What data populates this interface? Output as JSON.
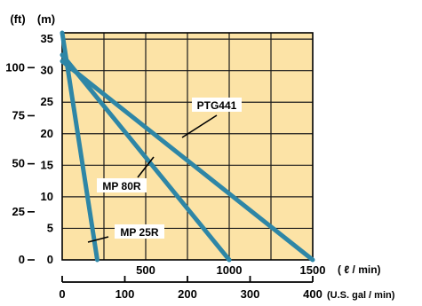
{
  "chart_data": {
    "type": "line",
    "colors": {
      "plot_background": "#FCE3A6",
      "grid": "#1a1a1a",
      "series": "#2E86A6"
    },
    "x_axis_primary": {
      "label": "( ℓ / min)",
      "range": [
        0,
        1500
      ],
      "ticks": [
        {
          "value": 0,
          "label": "0"
        },
        {
          "value": 500,
          "label": "500"
        },
        {
          "value": 1000,
          "label": "1000"
        },
        {
          "value": 1500,
          "label": "1500"
        }
      ],
      "minor_ticks": [
        250,
        750,
        1250
      ]
    },
    "x_axis_secondary": {
      "label": "(U.S. gal / min)",
      "range": [
        0,
        400
      ],
      "ticks": [
        {
          "value": 0,
          "label": "0"
        },
        {
          "value": 100,
          "label": "100"
        },
        {
          "value": 200,
          "label": "200"
        },
        {
          "value": 300,
          "label": "300"
        },
        {
          "value": 400,
          "label": "400"
        }
      ]
    },
    "y_axis_primary": {
      "label": "(m)",
      "range": [
        0,
        36
      ],
      "ticks": [
        {
          "value": 0,
          "label": "0"
        },
        {
          "value": 5,
          "label": "5"
        },
        {
          "value": 10,
          "label": "10"
        },
        {
          "value": 15,
          "label": "15"
        },
        {
          "value": 20,
          "label": "20"
        },
        {
          "value": 25,
          "label": "25"
        },
        {
          "value": 30,
          "label": "30"
        },
        {
          "value": 35,
          "label": "35"
        }
      ]
    },
    "y_axis_secondary": {
      "label": "(ft)",
      "ticks": [
        {
          "value": 0,
          "label": "0"
        },
        {
          "value": 25,
          "label": "25"
        },
        {
          "value": 50,
          "label": "50"
        },
        {
          "value": 75,
          "label": "75"
        },
        {
          "value": 100,
          "label": "100"
        }
      ]
    },
    "series": [
      {
        "name": "PTG441",
        "points": [
          [
            0,
            31.5
          ],
          [
            1500,
            0
          ]
        ],
        "label_anchor": [
          700,
          19.5
        ]
      },
      {
        "name": "MP 80R",
        "points": [
          [
            0,
            32.5
          ],
          [
            1000,
            0
          ]
        ],
        "label_anchor": [
          560,
          15.5
        ]
      },
      {
        "name": "MP 25R",
        "points": [
          [
            0,
            36
          ],
          [
            210,
            0
          ]
        ],
        "label_anchor": [
          150,
          2.2
        ]
      }
    ]
  }
}
